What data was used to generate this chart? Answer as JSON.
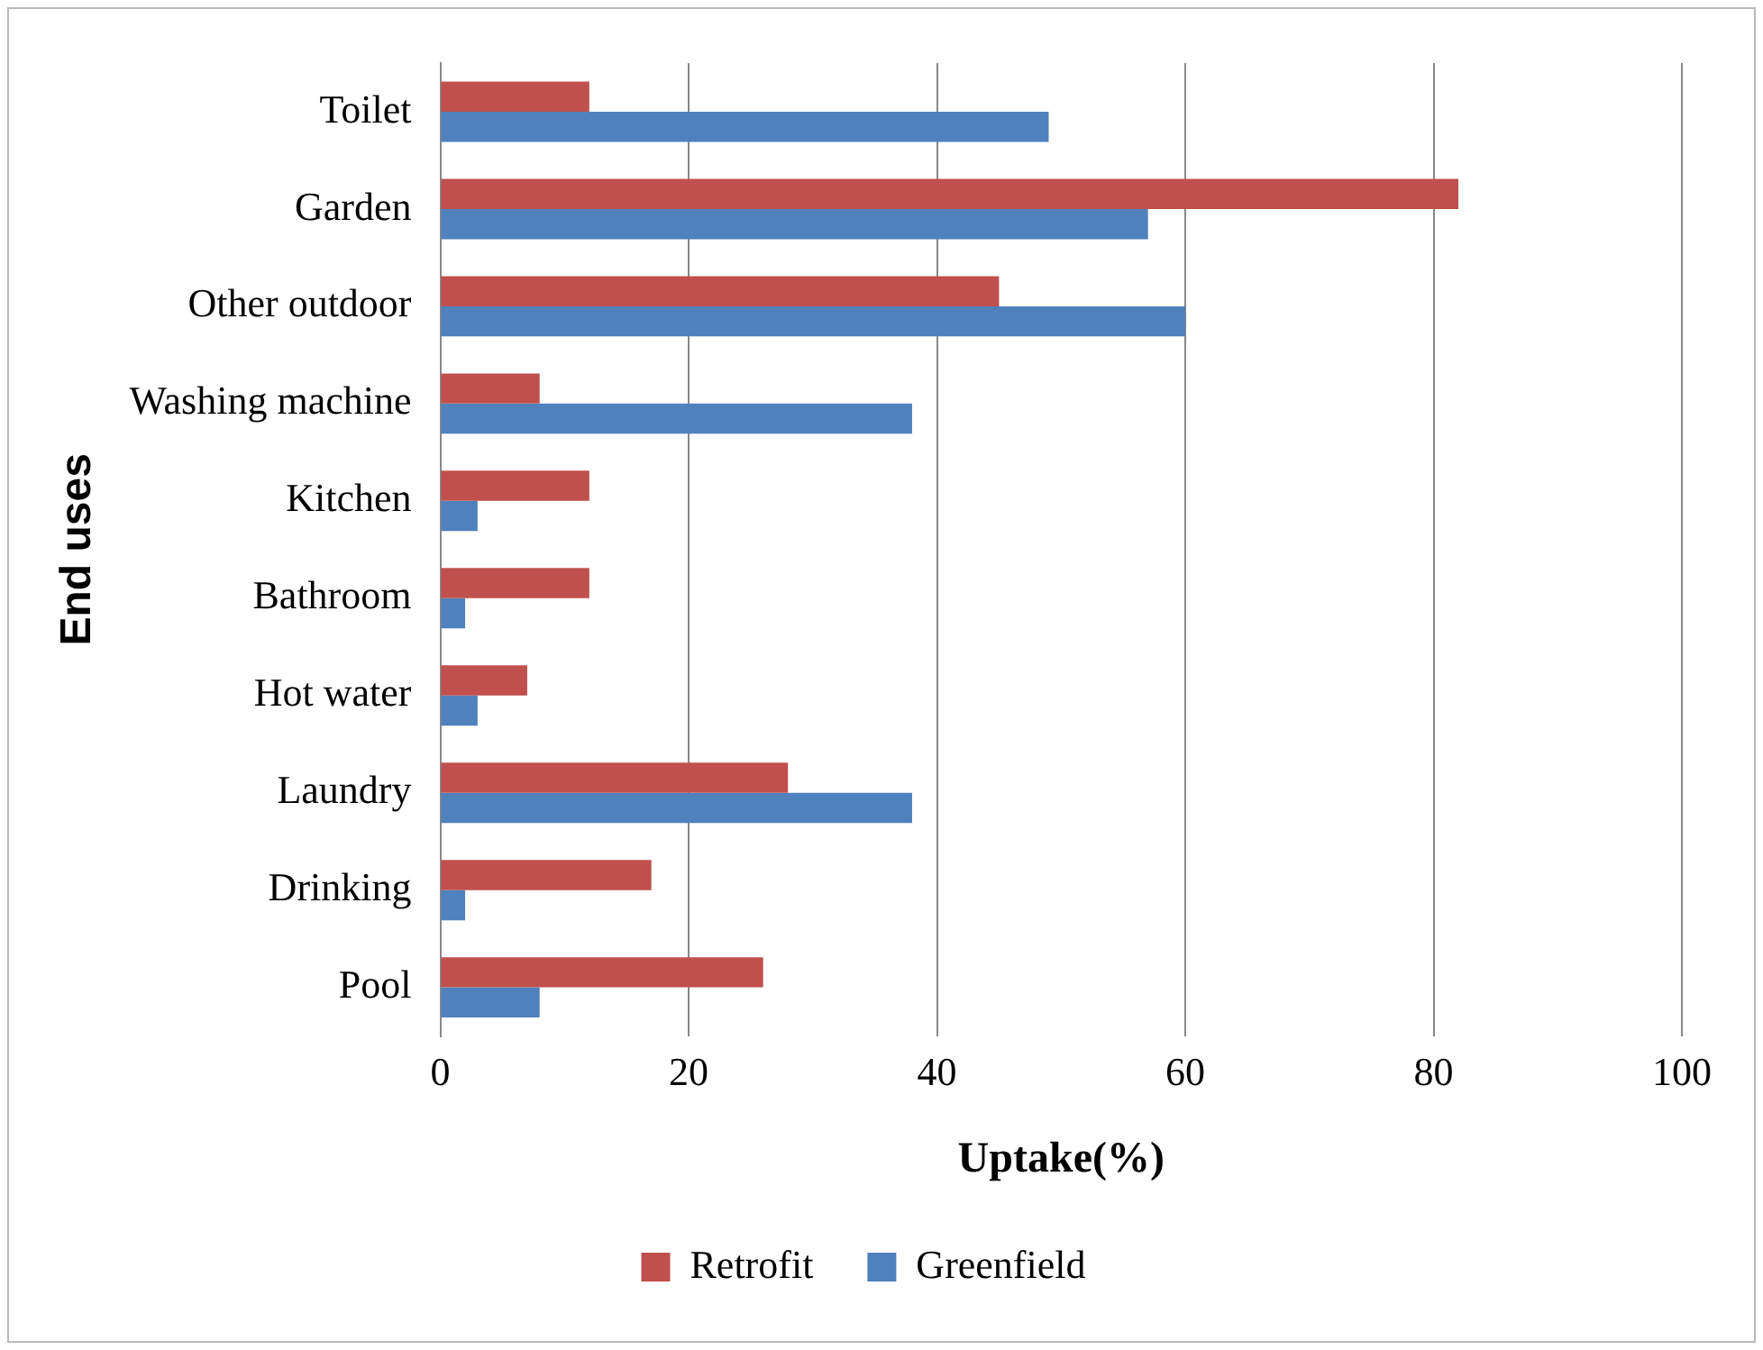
{
  "chart_data": {
    "type": "bar",
    "orientation": "horizontal",
    "xlabel": "Uptake(%)",
    "ylabel": "End uses",
    "categories": [
      "Toilet",
      "Garden",
      "Other outdoor",
      "Washing machine",
      "Kitchen",
      "Bathroom",
      "Hot water",
      "Laundry",
      "Drinking",
      "Pool"
    ],
    "series": [
      {
        "name": "Retrofit",
        "color": "#c0504d",
        "values": [
          12,
          82,
          45,
          8,
          12,
          12,
          7,
          28,
          17,
          26
        ]
      },
      {
        "name": "Greenfield",
        "color": "#4f81bd",
        "values": [
          49,
          57,
          60,
          38,
          3,
          2,
          3,
          38,
          2,
          8
        ]
      }
    ],
    "xlim": [
      0,
      100
    ],
    "xticks": [
      0,
      20,
      40,
      60,
      80,
      100
    ],
    "grid": "x",
    "legend": "bottom"
  }
}
